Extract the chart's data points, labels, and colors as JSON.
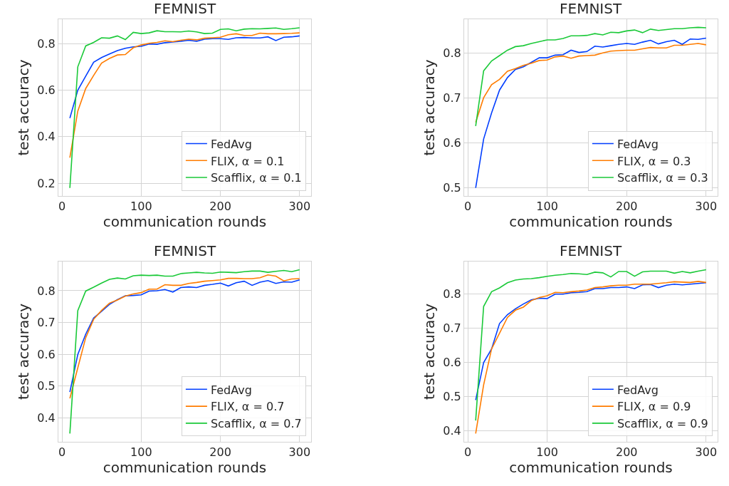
{
  "chart_data": [
    {
      "type": "line",
      "title": "FEMNIST",
      "xlabel": "communication rounds",
      "ylabel": "test accuracy",
      "xlim": [
        -4.5,
        314.5
      ],
      "ylim": [
        0.1455,
        0.9045
      ],
      "xticks": [
        0,
        100,
        200,
        300
      ],
      "yticks": [
        0.2,
        0.4,
        0.6,
        0.8
      ],
      "grid": true,
      "legend": "bottom right",
      "x": [
        10,
        20,
        30,
        40,
        50,
        60,
        70,
        80,
        90,
        100,
        110,
        120,
        130,
        140,
        150,
        160,
        170,
        180,
        190,
        200,
        210,
        220,
        230,
        240,
        250,
        260,
        270,
        280,
        290,
        300
      ],
      "series": [
        {
          "name": "FedAvg",
          "color": "#023eff",
          "values": [
            0.48,
            0.6,
            0.66,
            0.72,
            0.74,
            0.755,
            0.77,
            0.78,
            0.786,
            0.788,
            0.798,
            0.797,
            0.804,
            0.807,
            0.81,
            0.814,
            0.81,
            0.819,
            0.821,
            0.821,
            0.818,
            0.825,
            0.826,
            0.824,
            0.824,
            0.829,
            0.813,
            0.827,
            0.829,
            0.833
          ]
        },
        {
          "name": "FLIX, α = 0.1",
          "color": "#ff7c00",
          "values": [
            0.31,
            0.51,
            0.607,
            0.663,
            0.716,
            0.736,
            0.751,
            0.753,
            0.782,
            0.794,
            0.801,
            0.805,
            0.812,
            0.808,
            0.814,
            0.819,
            0.816,
            0.823,
            0.825,
            0.827,
            0.838,
            0.842,
            0.835,
            0.835,
            0.845,
            0.842,
            0.842,
            0.843,
            0.844,
            0.846
          ]
        },
        {
          "name": "Scafflix, α = 0.1",
          "color": "#1ac938",
          "values": [
            0.18,
            0.7,
            0.79,
            0.805,
            0.825,
            0.823,
            0.833,
            0.817,
            0.848,
            0.843,
            0.846,
            0.855,
            0.851,
            0.851,
            0.85,
            0.854,
            0.85,
            0.843,
            0.845,
            0.861,
            0.863,
            0.855,
            0.862,
            0.864,
            0.863,
            0.865,
            0.867,
            0.861,
            0.864,
            0.868
          ]
        }
      ]
    },
    {
      "type": "line",
      "title": "FEMNIST",
      "xlabel": "communication rounds",
      "ylabel": "test accuracy",
      "xlim": [
        -4.5,
        314.5
      ],
      "ylim": [
        0.482,
        0.876
      ],
      "xticks": [
        0,
        100,
        200,
        300
      ],
      "yticks": [
        0.5,
        0.6,
        0.7,
        0.8
      ],
      "grid": true,
      "legend": "bottom right",
      "x": [
        10,
        20,
        30,
        40,
        50,
        60,
        70,
        80,
        90,
        100,
        110,
        120,
        130,
        140,
        150,
        160,
        170,
        180,
        190,
        200,
        210,
        220,
        230,
        240,
        250,
        260,
        270,
        280,
        290,
        300
      ],
      "series": [
        {
          "name": "FedAvg",
          "color": "#023eff",
          "values": [
            0.5,
            0.609,
            0.667,
            0.718,
            0.746,
            0.764,
            0.77,
            0.78,
            0.79,
            0.79,
            0.796,
            0.797,
            0.807,
            0.802,
            0.804,
            0.816,
            0.814,
            0.817,
            0.82,
            0.822,
            0.82,
            0.825,
            0.829,
            0.821,
            0.826,
            0.829,
            0.82,
            0.832,
            0.831,
            0.834
          ]
        },
        {
          "name": "FLIX, α = 0.3",
          "color": "#ff7c00",
          "values": [
            0.646,
            0.701,
            0.73,
            0.742,
            0.76,
            0.766,
            0.773,
            0.778,
            0.784,
            0.785,
            0.792,
            0.794,
            0.789,
            0.794,
            0.795,
            0.796,
            0.801,
            0.805,
            0.806,
            0.807,
            0.807,
            0.81,
            0.813,
            0.812,
            0.812,
            0.818,
            0.818,
            0.82,
            0.822,
            0.819
          ]
        },
        {
          "name": "Scafflix, α = 0.3",
          "color": "#1ac938",
          "values": [
            0.638,
            0.761,
            0.783,
            0.795,
            0.807,
            0.815,
            0.817,
            0.822,
            0.826,
            0.83,
            0.83,
            0.833,
            0.839,
            0.839,
            0.84,
            0.844,
            0.841,
            0.847,
            0.846,
            0.85,
            0.852,
            0.846,
            0.854,
            0.851,
            0.853,
            0.855,
            0.855,
            0.857,
            0.858,
            0.857
          ]
        }
      ]
    },
    {
      "type": "line",
      "title": "FEMNIST",
      "xlabel": "communication rounds",
      "ylabel": "test accuracy",
      "xlim": [
        -4.5,
        314.5
      ],
      "ylim": [
        0.324,
        0.892
      ],
      "xticks": [
        0,
        100,
        200,
        300
      ],
      "yticks": [
        0.4,
        0.5,
        0.6,
        0.7,
        0.8
      ],
      "grid": true,
      "legend": "bottom right",
      "x": [
        10,
        20,
        30,
        40,
        50,
        60,
        70,
        80,
        90,
        100,
        110,
        120,
        130,
        140,
        150,
        160,
        170,
        180,
        190,
        200,
        210,
        220,
        230,
        240,
        250,
        260,
        270,
        280,
        290,
        300
      ],
      "series": [
        {
          "name": "FedAvg",
          "color": "#023eff",
          "values": [
            0.481,
            0.599,
            0.663,
            0.714,
            0.735,
            0.757,
            0.772,
            0.784,
            0.785,
            0.787,
            0.799,
            0.8,
            0.804,
            0.796,
            0.81,
            0.812,
            0.81,
            0.817,
            0.82,
            0.824,
            0.815,
            0.825,
            0.83,
            0.817,
            0.827,
            0.832,
            0.823,
            0.828,
            0.827,
            0.834
          ]
        },
        {
          "name": "FLIX, α = 0.7",
          "color": "#ff7c00",
          "values": [
            0.461,
            0.557,
            0.652,
            0.71,
            0.738,
            0.761,
            0.771,
            0.783,
            0.79,
            0.794,
            0.805,
            0.805,
            0.819,
            0.817,
            0.817,
            0.823,
            0.826,
            0.83,
            0.832,
            0.834,
            0.839,
            0.839,
            0.838,
            0.838,
            0.841,
            0.85,
            0.846,
            0.831,
            0.837,
            0.838
          ]
        },
        {
          "name": "Scafflix, α = 0.7",
          "color": "#1ac938",
          "values": [
            0.35,
            0.737,
            0.799,
            0.811,
            0.824,
            0.836,
            0.84,
            0.837,
            0.847,
            0.849,
            0.848,
            0.849,
            0.846,
            0.846,
            0.854,
            0.856,
            0.858,
            0.856,
            0.855,
            0.859,
            0.858,
            0.857,
            0.86,
            0.862,
            0.862,
            0.858,
            0.861,
            0.864,
            0.86,
            0.866
          ]
        }
      ]
    },
    {
      "type": "line",
      "title": "FEMNIST",
      "xlabel": "communication rounds",
      "ylabel": "test accuracy",
      "xlim": [
        -4.5,
        314.5
      ],
      "ylim": [
        0.368,
        0.894
      ],
      "xticks": [
        0,
        100,
        200,
        300
      ],
      "yticks": [
        0.4,
        0.5,
        0.6,
        0.7,
        0.8
      ],
      "grid": true,
      "legend": "bottom right",
      "x": [
        10,
        20,
        30,
        40,
        50,
        60,
        70,
        80,
        90,
        100,
        110,
        120,
        130,
        140,
        150,
        160,
        170,
        180,
        190,
        200,
        210,
        220,
        230,
        240,
        250,
        260,
        270,
        280,
        290,
        300
      ],
      "series": [
        {
          "name": "FedAvg",
          "color": "#023eff",
          "values": [
            0.49,
            0.599,
            0.639,
            0.713,
            0.739,
            0.756,
            0.77,
            0.782,
            0.787,
            0.786,
            0.799,
            0.799,
            0.803,
            0.804,
            0.806,
            0.815,
            0.815,
            0.818,
            0.818,
            0.82,
            0.815,
            0.826,
            0.827,
            0.818,
            0.825,
            0.828,
            0.826,
            0.828,
            0.83,
            0.832
          ]
        },
        {
          "name": "FLIX, α = 0.9",
          "color": "#ff7c00",
          "values": [
            0.392,
            0.534,
            0.639,
            0.685,
            0.731,
            0.752,
            0.761,
            0.78,
            0.789,
            0.794,
            0.804,
            0.803,
            0.806,
            0.808,
            0.811,
            0.818,
            0.82,
            0.823,
            0.825,
            0.825,
            0.828,
            0.828,
            0.828,
            0.83,
            0.832,
            0.835,
            0.834,
            0.833,
            0.836,
            0.833
          ]
        },
        {
          "name": "Scafflix, α = 0.9",
          "color": "#1ac938",
          "values": [
            0.43,
            0.763,
            0.806,
            0.817,
            0.832,
            0.84,
            0.843,
            0.844,
            0.847,
            0.851,
            0.854,
            0.856,
            0.859,
            0.858,
            0.856,
            0.863,
            0.861,
            0.849,
            0.865,
            0.865,
            0.851,
            0.864,
            0.866,
            0.866,
            0.866,
            0.86,
            0.865,
            0.861,
            0.866,
            0.87
          ]
        }
      ]
    }
  ]
}
